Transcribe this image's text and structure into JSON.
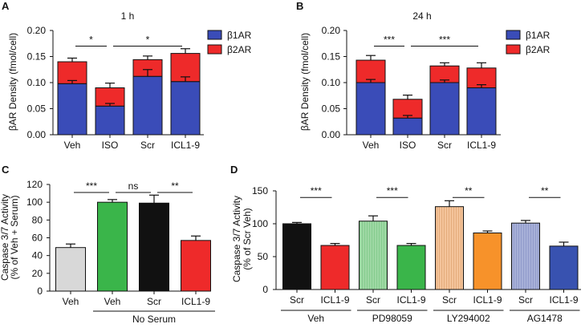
{
  "panels": {
    "A": {
      "letter": "A"
    },
    "B": {
      "letter": "B"
    },
    "C": {
      "letter": "C"
    },
    "D": {
      "letter": "D"
    }
  },
  "colors": {
    "b1": "#3a4cb8",
    "b2": "#ee2a2a",
    "veh_gray": "#d8d8d8",
    "green": "#3ab54a",
    "black": "#111111",
    "red": "#ee2a2a",
    "light_green": "#9ed8a4",
    "orange": "#f7922a",
    "light_orange": "#f4c49b",
    "light_blue": "#a7b0d8",
    "blue": "#3852b0"
  },
  "chart_data": [
    {
      "id": "A",
      "type": "bar",
      "stacked": true,
      "title": "1 h",
      "ylabel": "βAR Density (fmol/cell)",
      "ylim": [
        0,
        0.2
      ],
      "yticks": [
        "0.00",
        "0.05",
        "0.10",
        "0.15",
        "0.20"
      ],
      "categories": [
        "Veh",
        "ISO",
        "Scr",
        "ICL1-9"
      ],
      "series": [
        {
          "name": "β1AR",
          "values": [
            0.098,
            0.055,
            0.112,
            0.102
          ],
          "errors": [
            0.006,
            0.005,
            0.013,
            0.009
          ]
        },
        {
          "name": "β2AR",
          "values": [
            0.042,
            0.035,
            0.032,
            0.054
          ],
          "errors": [
            0.007,
            0.009,
            0.007,
            0.009
          ]
        }
      ],
      "significance": [
        {
          "label": "*",
          "from": 0,
          "to": 1,
          "y": 0.17
        },
        {
          "label": "*",
          "from": 1,
          "to": 3,
          "y": 0.17
        }
      ],
      "legend": [
        "β1AR",
        "β2AR"
      ]
    },
    {
      "id": "B",
      "type": "bar",
      "stacked": true,
      "title": "24 h",
      "ylabel": "βAR Density (fmol/cell)",
      "ylim": [
        0,
        0.2
      ],
      "yticks": [
        "0.00",
        "0.05",
        "0.10",
        "0.15",
        "0.20"
      ],
      "categories": [
        "Veh",
        "ISO",
        "Scr",
        "ICL1-9"
      ],
      "series": [
        {
          "name": "β1AR",
          "values": [
            0.1,
            0.032,
            0.1,
            0.09
          ],
          "errors": [
            0.006,
            0.005,
            0.005,
            0.006
          ]
        },
        {
          "name": "β2AR",
          "values": [
            0.043,
            0.036,
            0.032,
            0.038
          ],
          "errors": [
            0.009,
            0.008,
            0.006,
            0.01
          ]
        }
      ],
      "significance": [
        {
          "label": "***",
          "from": 0,
          "to": 1,
          "y": 0.17
        },
        {
          "label": "***",
          "from": 1,
          "to": 3,
          "y": 0.17
        }
      ],
      "legend": [
        "β1AR",
        "β2AR"
      ]
    },
    {
      "id": "C",
      "type": "bar",
      "ylabel": [
        "Caspase 3/7 Activity",
        "(% of Veh + Serum)"
      ],
      "ylim": [
        0,
        120
      ],
      "yticks": [
        "0",
        "20",
        "40",
        "60",
        "80",
        "100",
        "120"
      ],
      "categories": [
        "Veh",
        "Veh",
        "Scr",
        "ICL1-9"
      ],
      "values": [
        49,
        100,
        99,
        57
      ],
      "errors": [
        4,
        3,
        9,
        5
      ],
      "bar_colors": [
        "veh_gray",
        "green",
        "black",
        "red"
      ],
      "group_label": "No Serum",
      "significance": [
        {
          "label": "***",
          "from": 0,
          "to": 1,
          "y": 111
        },
        {
          "label": "ns",
          "from": 1,
          "to": 2,
          "y": 111
        },
        {
          "label": "**",
          "from": 2,
          "to": 3,
          "y": 111
        }
      ]
    },
    {
      "id": "D",
      "type": "bar",
      "ylabel": [
        "Caspase 3/7 Activity",
        "(% of Scr Veh)"
      ],
      "ylim": [
        0,
        150
      ],
      "yticks": [
        "0",
        "50",
        "100",
        "150"
      ],
      "categories": [
        "Scr",
        "ICL1-9",
        "Scr",
        "ICL1-9",
        "Scr",
        "ICL1-9",
        "Scr",
        "ICL1-9"
      ],
      "values": [
        100,
        67,
        104,
        67,
        126,
        86,
        101,
        66
      ],
      "errors": [
        2,
        3,
        8,
        3,
        9,
        3,
        4,
        6
      ],
      "bar_colors": [
        "black",
        "red",
        "light_green",
        "green",
        "light_orange",
        "orange",
        "light_blue",
        "blue"
      ],
      "hatched": [
        false,
        false,
        true,
        false,
        true,
        false,
        true,
        false
      ],
      "groups": [
        "Veh",
        "PD98059",
        "LY294002",
        "AG1478"
      ],
      "significance": [
        {
          "label": "***",
          "from": 0,
          "to": 1,
          "y": 140
        },
        {
          "label": "***",
          "from": 2,
          "to": 3,
          "y": 140
        },
        {
          "label": "**",
          "from": 4,
          "to": 5,
          "y": 140
        },
        {
          "label": "**",
          "from": 6,
          "to": 7,
          "y": 140
        }
      ]
    }
  ]
}
